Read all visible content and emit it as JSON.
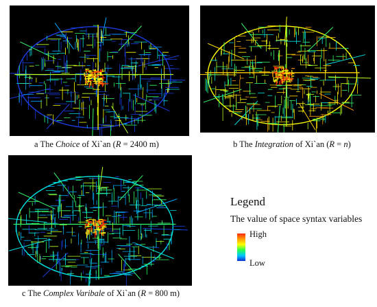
{
  "panels": [
    {
      "id": "a",
      "caption": {
        "prefix": "a The ",
        "variable": "Choice",
        "mid": " of  Xi`an (",
        "param": "R",
        "suffix": " = 2400 m)"
      },
      "palette": [
        "#1a3ce0",
        "#1a3ce0",
        "#1a3ce0",
        "#00a8ff",
        "#00e0e0",
        "#36ff6a",
        "#b8ff20",
        "#ffff00"
      ],
      "core": [
        "#ff2a00",
        "#ff9b00",
        "#ffff00"
      ]
    },
    {
      "id": "b",
      "caption": {
        "prefix": "b The ",
        "variable": "Integration",
        "mid": " of  Xi`an (",
        "param": "R",
        "suffix": " = ",
        "suffix_italic": "n",
        "close": ")"
      },
      "palette": [
        "#ffff00",
        "#ffe000",
        "#b8ff20",
        "#36ff6a",
        "#ff9b00",
        "#36ff6a",
        "#ffd000",
        "#00e0e0"
      ],
      "core": [
        "#ff2a00",
        "#ff9b00",
        "#ffff00"
      ]
    },
    {
      "id": "c",
      "caption": {
        "prefix": "c The ",
        "variable": "Complex Varibale",
        "mid": " of  Xi`an (",
        "param": "R",
        "suffix": " = 800 m)"
      },
      "palette": [
        "#00e0e0",
        "#00a8ff",
        "#36ff6a",
        "#b8ff20",
        "#00e0e0",
        "#1a3ce0",
        "#36ff6a",
        "#00a8ff"
      ],
      "core": [
        "#ff2a00",
        "#ff9b00",
        "#ffff00"
      ]
    }
  ],
  "legend": {
    "title": "Legend",
    "subtitle": "The value of space syntax variables",
    "high": "High",
    "low": "Low",
    "gradient_colors": [
      "#ff2a00",
      "#ff9b00",
      "#ffff00",
      "#2bff4a",
      "#00c8ff",
      "#1030d8"
    ]
  }
}
